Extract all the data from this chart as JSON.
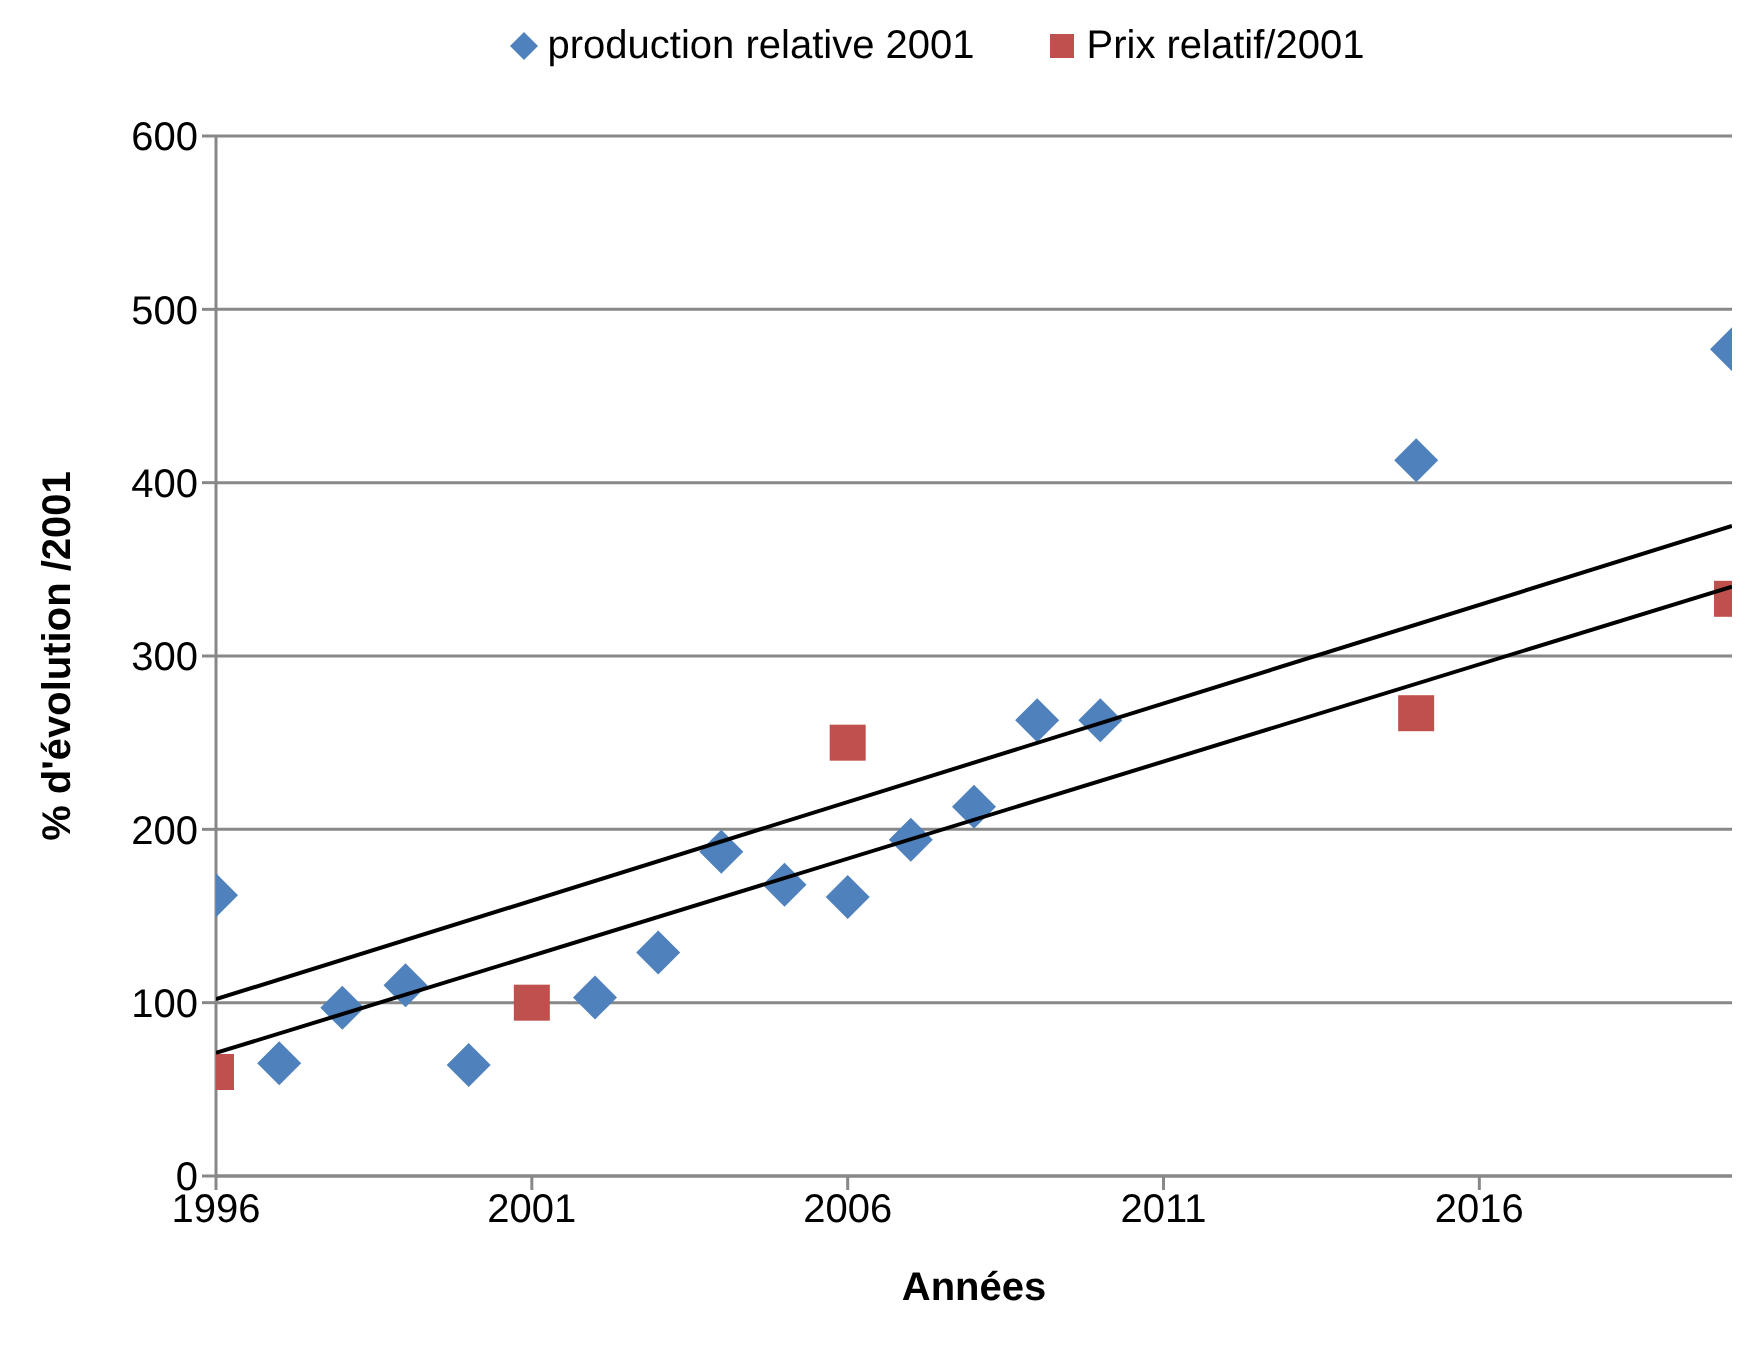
{
  "chart_data": {
    "type": "scatter",
    "xlabel": "Années",
    "ylabel": "% d'évolution /2001",
    "xlim": [
      1996,
      2020
    ],
    "xticks": [
      1996,
      2001,
      2006,
      2011,
      2016
    ],
    "ylim": [
      0,
      600
    ],
    "yticks": [
      0,
      100,
      200,
      300,
      400,
      500,
      600
    ],
    "grid": "y",
    "legend": "top",
    "series": [
      {
        "name": "production relative 2001",
        "color": "#4f81bd",
        "marker": "diamond",
        "x": [
          1996,
          1997,
          1998,
          1999,
          2000,
          2002,
          2003,
          2004,
          2005,
          2006,
          2007,
          2008,
          2009,
          2010,
          2015,
          2020
        ],
        "values": [
          162,
          65,
          97,
          110,
          64,
          103,
          129,
          187,
          168,
          161,
          194,
          213,
          263,
          263,
          413,
          477
        ]
      },
      {
        "name": "Prix relatif/2001",
        "color": "#c0504d",
        "marker": "square",
        "x": [
          1996,
          2001,
          2006,
          2015,
          2020
        ],
        "values": [
          60,
          100,
          250,
          267,
          333
        ]
      },
      {
        "type": "line",
        "color": "#000000",
        "marker": "none",
        "x": [
          1996,
          2020
        ],
        "values": [
          102,
          375
        ]
      },
      {
        "type": "line",
        "color": "#000000",
        "marker": "none",
        "x": [
          1996,
          2020
        ],
        "values": [
          71,
          340
        ]
      }
    ]
  }
}
